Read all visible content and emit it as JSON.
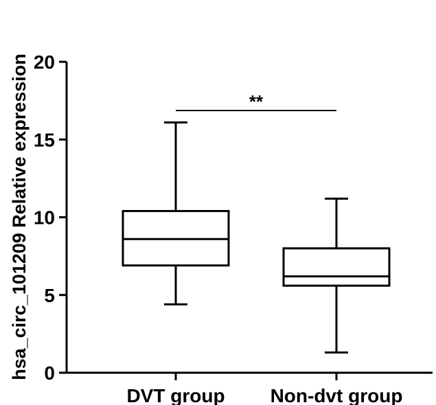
{
  "chart_data": {
    "type": "box",
    "ylabel": "hsa_circ_101209 Relative expression",
    "xlabel": "",
    "ylim": [
      0,
      20
    ],
    "yticks": [
      0,
      5,
      10,
      15,
      20
    ],
    "categories": [
      "DVT group",
      "Non-dvt group"
    ],
    "boxes": [
      {
        "category": "DVT group",
        "min": 4.4,
        "q1": 6.9,
        "median": 8.6,
        "q3": 10.4,
        "max": 16.1
      },
      {
        "category": "Non-dvt group",
        "min": 1.3,
        "q1": 5.6,
        "median": 6.2,
        "q3": 8.0,
        "max": 11.2
      }
    ],
    "annotation": {
      "text": "**",
      "between": [
        0,
        1
      ]
    }
  }
}
